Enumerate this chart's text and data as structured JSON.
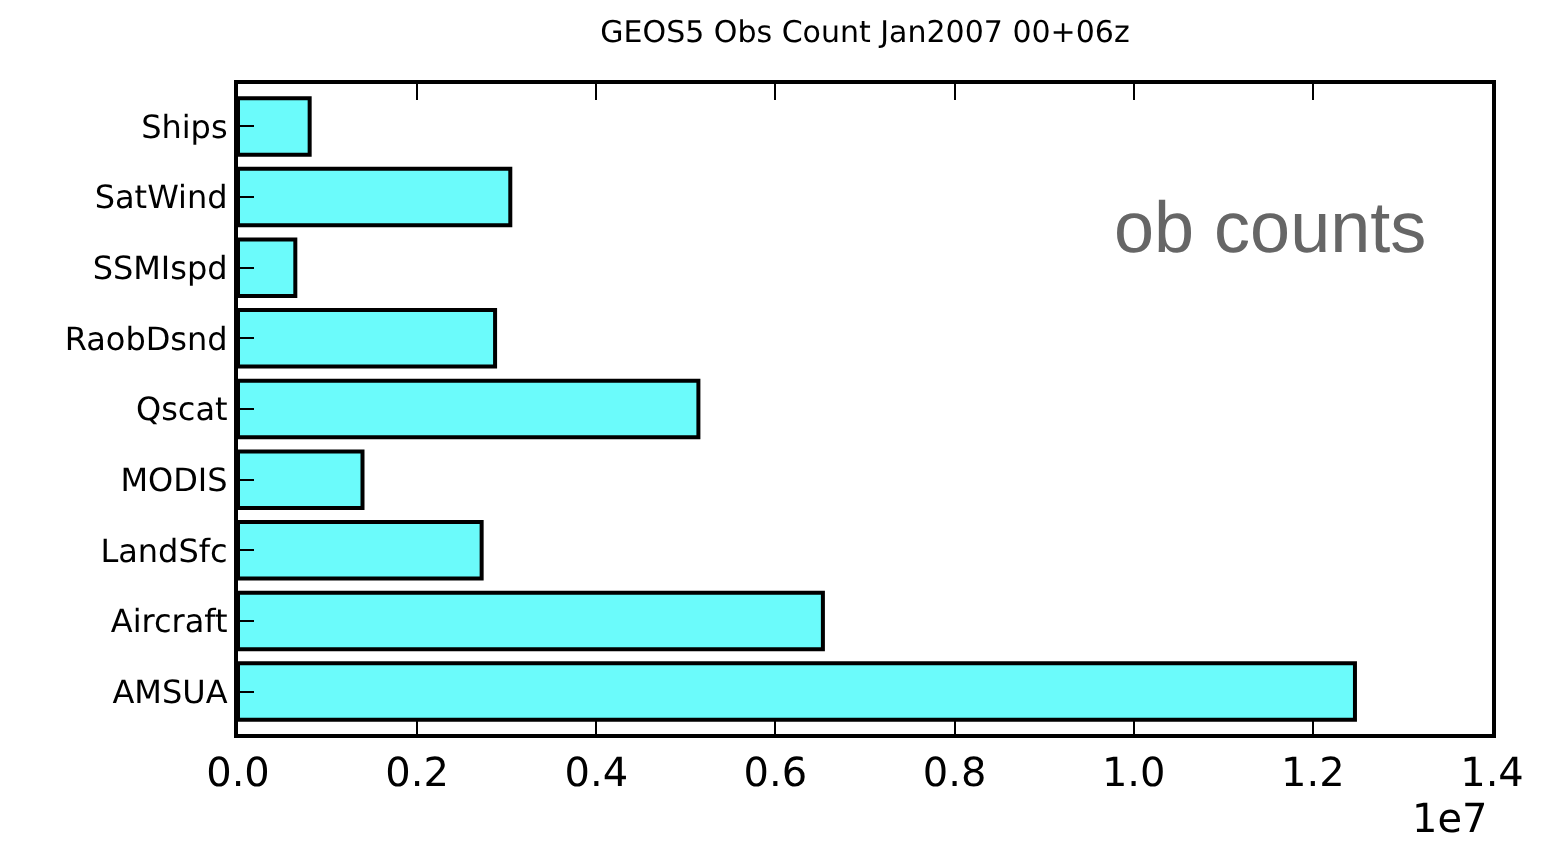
{
  "chart_data": {
    "type": "bar",
    "orientation": "horizontal",
    "title": "GEOS5 Obs Count Jan2007 00+06z",
    "categories": [
      "Ships",
      "SatWind",
      "SSMIspd",
      "RaobDsnd",
      "Qscat",
      "MODIS",
      "LandSfc",
      "Aircraft",
      "AMSUA"
    ],
    "values": [
      0.08,
      0.304,
      0.064,
      0.287,
      0.514,
      0.139,
      0.272,
      0.653,
      1.247
    ],
    "color": "#6bfbfb",
    "xlim": [
      0,
      1.4
    ],
    "xticks": [
      {
        "value": 0,
        "label": "0.0"
      },
      0.2,
      0.4,
      0.6,
      0.8,
      {
        "value": 1,
        "label": "1.0"
      },
      1.2,
      1.4
    ],
    "annotations": [
      "ob counts",
      "1e7"
    ]
  }
}
